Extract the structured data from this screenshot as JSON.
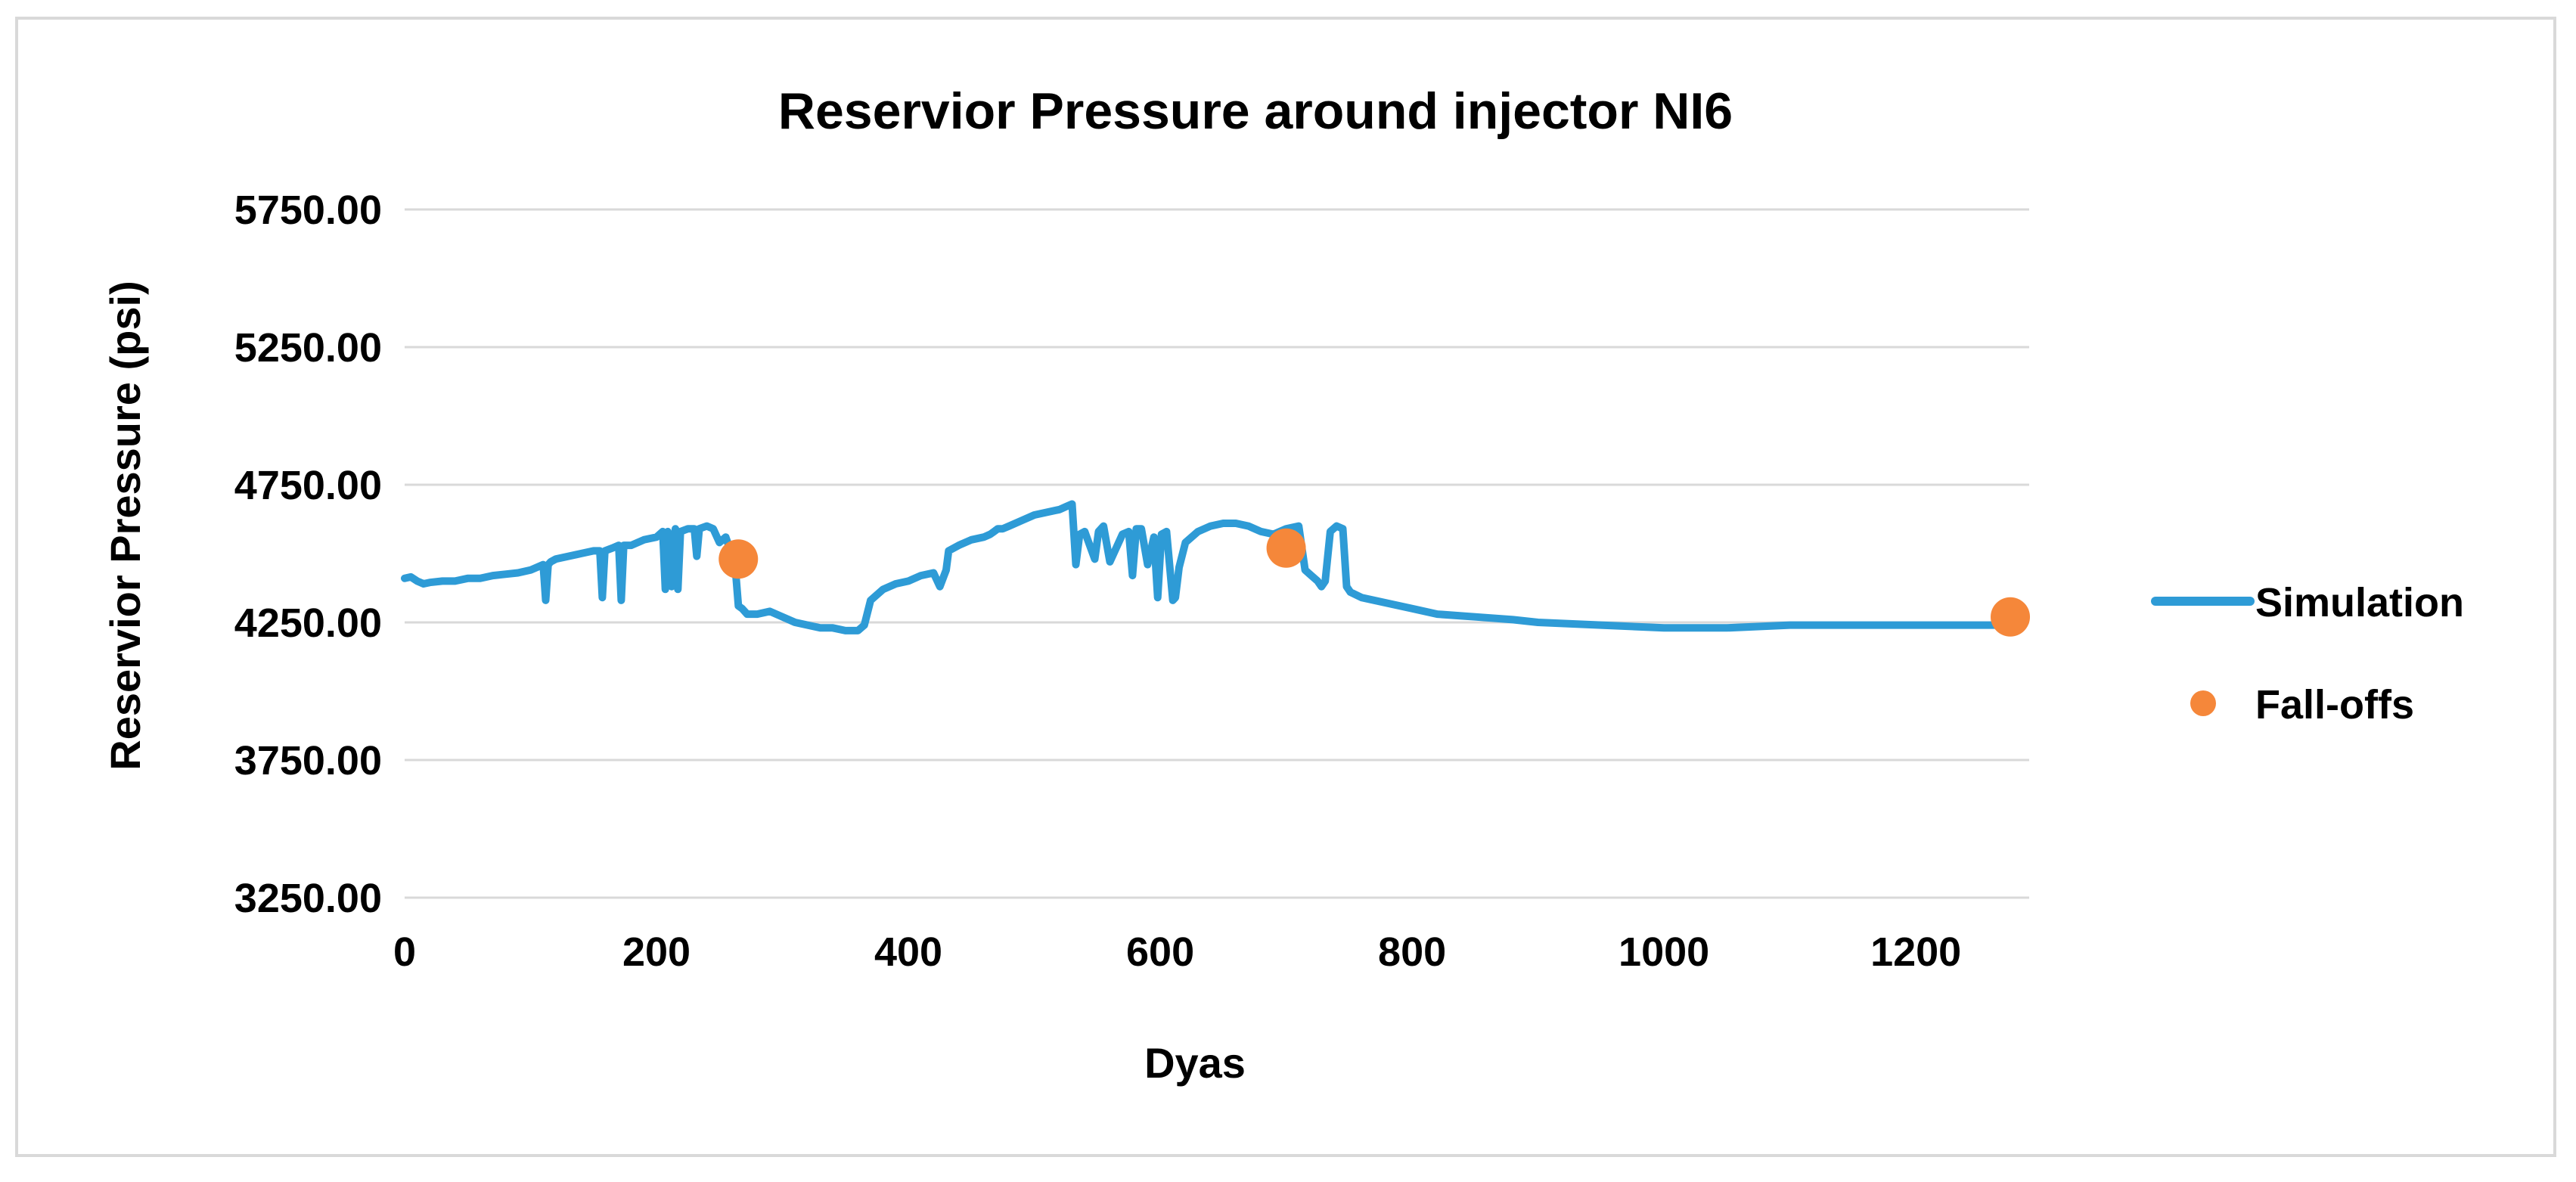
{
  "chart_data": {
    "type": "line",
    "title": "Reservior Pressure around injector NI6",
    "xlabel": "Dyas",
    "ylabel": "Reservior Pressure (psi)",
    "xlim": [
      0,
      1290
    ],
    "ylim": [
      3250,
      5750
    ],
    "x_ticks": [
      "0",
      "200",
      "400",
      "600",
      "800",
      "1000",
      "1200"
    ],
    "x_tick_values": [
      0,
      200,
      400,
      600,
      800,
      1000,
      1200
    ],
    "y_ticks": [
      "3250.00",
      "3750.00",
      "4250.00",
      "4750.00",
      "5250.00",
      "5750.00"
    ],
    "y_tick_values": [
      3250,
      3750,
      4250,
      4750,
      5250,
      5750
    ],
    "grid": "horizontal",
    "legend_position": "right",
    "colors": {
      "simulation": "#2E9BD6",
      "falloffs": "#F5873A",
      "grid": "#d9d9d9"
    },
    "series": [
      {
        "name": "Simulation",
        "kind": "line",
        "x": [
          0,
          5,
          10,
          15,
          20,
          30,
          40,
          50,
          60,
          70,
          80,
          90,
          100,
          110,
          112,
          114,
          116,
          120,
          130,
          140,
          150,
          155,
          157,
          159,
          165,
          170,
          172,
          174,
          180,
          190,
          200,
          205,
          207,
          209,
          212,
          215,
          217,
          219,
          225,
          230,
          232,
          234,
          240,
          245,
          250,
          255,
          258,
          262,
          265,
          268,
          272,
          280,
          290,
          300,
          310,
          320,
          330,
          340,
          350,
          355,
          360,
          365,
          370,
          380,
          390,
          400,
          410,
          420,
          425,
          430,
          432,
          440,
          450,
          460,
          465,
          468,
          471,
          475,
          480,
          490,
          500,
          510,
          520,
          525,
          530,
          533,
          536,
          540,
          548,
          551,
          555,
          560,
          570,
          575,
          578,
          581,
          585,
          590,
          595,
          598,
          601,
          605,
          610,
          612,
          615,
          620,
          630,
          640,
          650,
          660,
          670,
          680,
          690,
          700,
          710,
          715,
          720,
          725,
          728,
          731,
          735,
          740,
          745,
          748,
          751,
          760,
          780,
          800,
          820,
          850,
          880,
          900,
          950,
          1000,
          1050,
          1100,
          1150,
          1200,
          1250,
          1270
        ],
        "y": [
          4410,
          4415,
          4400,
          4390,
          4395,
          4400,
          4400,
          4410,
          4410,
          4420,
          4425,
          4430,
          4440,
          4460,
          4330,
          4460,
          4470,
          4480,
          4490,
          4500,
          4510,
          4510,
          4340,
          4510,
          4520,
          4530,
          4330,
          4530,
          4530,
          4550,
          4560,
          4580,
          4370,
          4580,
          4380,
          4590,
          4370,
          4580,
          4590,
          4590,
          4490,
          4590,
          4600,
          4590,
          4540,
          4560,
          4520,
          4480,
          4310,
          4300,
          4280,
          4280,
          4290,
          4270,
          4250,
          4240,
          4230,
          4230,
          4220,
          4220,
          4220,
          4240,
          4330,
          4370,
          4390,
          4400,
          4420,
          4430,
          4380,
          4440,
          4510,
          4530,
          4550,
          4560,
          4570,
          4580,
          4590,
          4590,
          4600,
          4620,
          4640,
          4650,
          4660,
          4670,
          4680,
          4460,
          4570,
          4580,
          4480,
          4580,
          4600,
          4470,
          4570,
          4580,
          4420,
          4590,
          4590,
          4460,
          4560,
          4340,
          4570,
          4580,
          4330,
          4340,
          4450,
          4540,
          4580,
          4600,
          4610,
          4610,
          4600,
          4580,
          4570,
          4590,
          4600,
          4440,
          4420,
          4400,
          4380,
          4400,
          4580,
          4600,
          4590,
          4380,
          4360,
          4340,
          4320,
          4300,
          4280,
          4270,
          4260,
          4250,
          4240,
          4230,
          4230,
          4240,
          4240,
          4240,
          4240,
          4240
        ]
      },
      {
        "name": "Fall-offs",
        "kind": "scatter",
        "x": [
          265,
          700,
          1275
        ],
        "y": [
          4480,
          4520,
          4270
        ]
      }
    ]
  }
}
